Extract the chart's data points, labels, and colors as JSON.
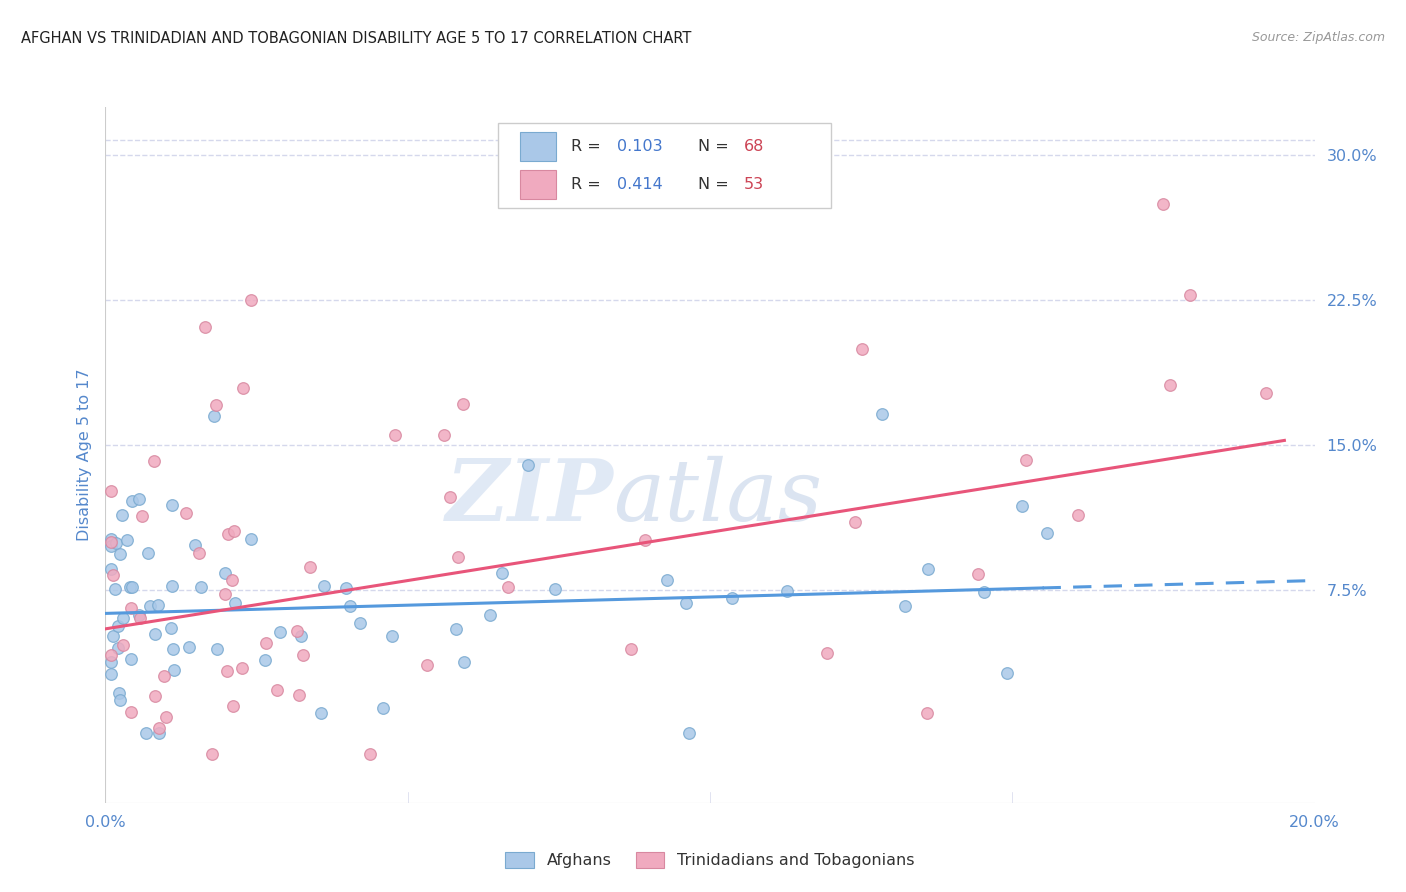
{
  "title": "AFGHAN VS TRINIDADIAN AND TOBAGONIAN DISABILITY AGE 5 TO 17 CORRELATION CHART",
  "source": "Source: ZipAtlas.com",
  "ylabel": "Disability Age 5 to 17",
  "xmin": 0.0,
  "xmax": 0.2,
  "ymin": -0.035,
  "ymax": 0.325,
  "yticks": [
    0.075,
    0.15,
    0.225,
    0.3
  ],
  "ytick_labels": [
    "7.5%",
    "15.0%",
    "22.5%",
    "30.0%"
  ],
  "xticks": [
    0.0,
    0.05,
    0.1,
    0.15,
    0.2
  ],
  "xtick_labels": [
    "0.0%",
    "",
    "",
    "",
    "20.0%"
  ],
  "series1_color": "#aac8e8",
  "series1_edge": "#7aaad0",
  "series2_color": "#f0aabf",
  "series2_edge": "#d888a0",
  "line1_color": "#5599dd",
  "line2_color": "#e8557a",
  "R1": 0.103,
  "N1": 68,
  "R2": 0.414,
  "N2": 53,
  "legend1_label": "Afghans",
  "legend2_label": "Trinidadians and Tobagonians",
  "watermark_zip": "ZIP",
  "watermark_atlas": "atlas",
  "background_color": "#ffffff",
  "grid_color": "#d5d8ec",
  "title_color": "#222222",
  "source_color": "#999999",
  "axis_label_color": "#5588cc",
  "tick_color": "#5588cc",
  "legend_R_color": "#4477cc",
  "legend_N_color": "#cc4455",
  "line1_intercept": 0.063,
  "line1_slope": 0.085,
  "line2_intercept": 0.055,
  "line2_slope": 0.5,
  "seed1": 42,
  "seed2": 99
}
